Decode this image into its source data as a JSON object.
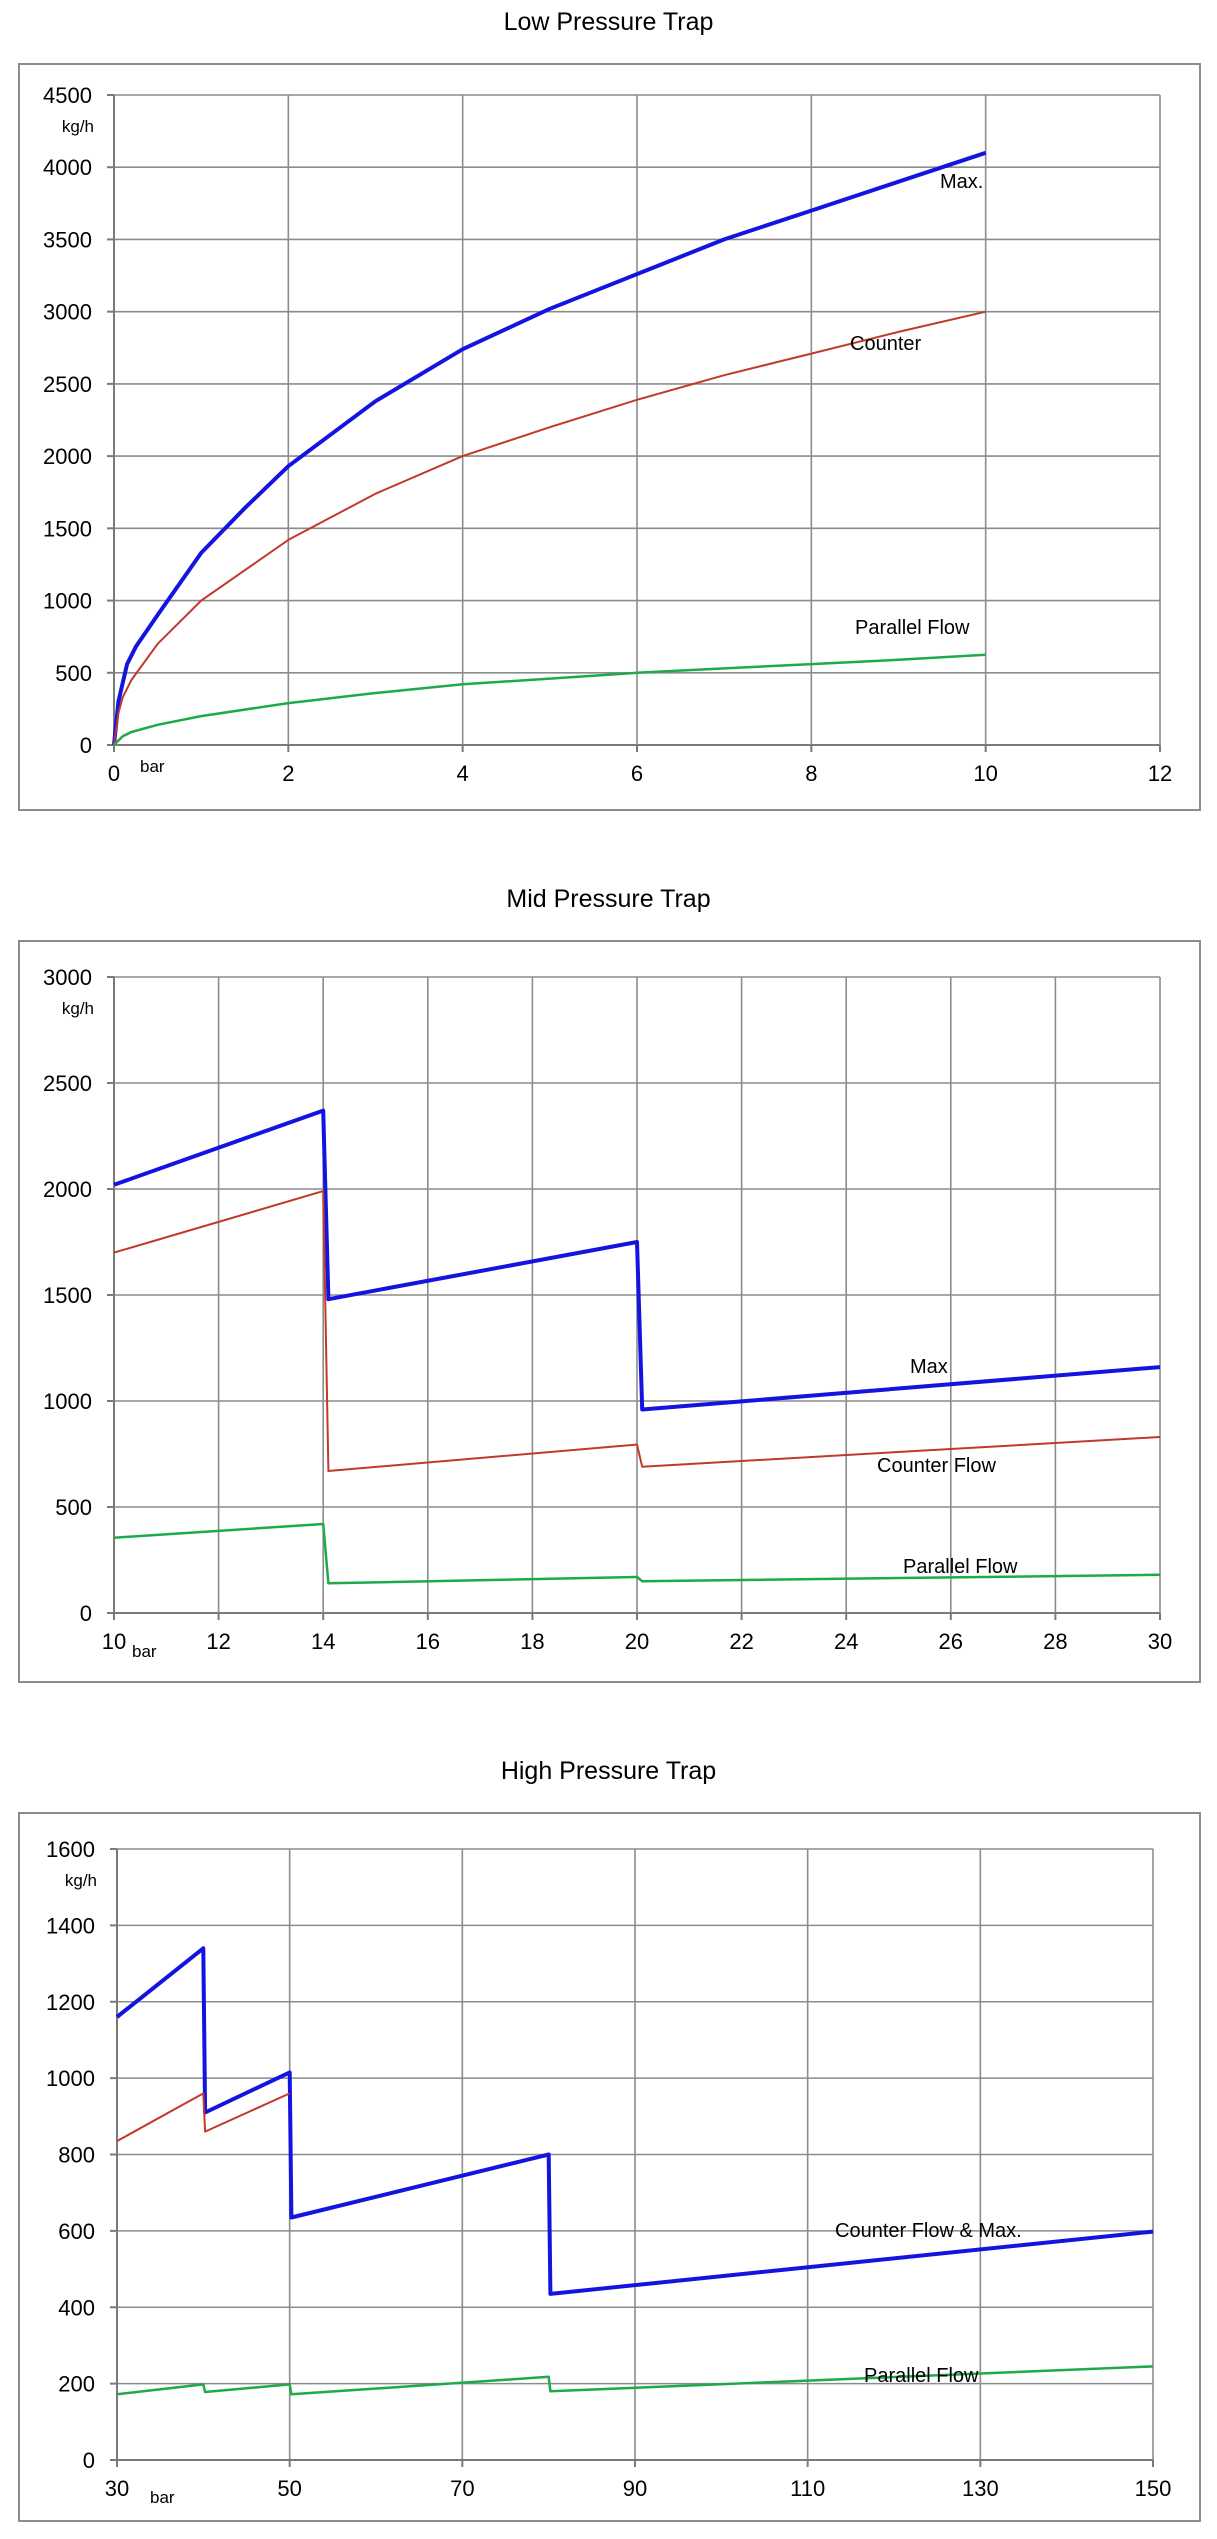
{
  "chart_data": [
    {
      "type": "line",
      "title": "Low Pressure Trap",
      "ylabel": "kg/h",
      "xlabel": "bar",
      "xlim": [
        0,
        12
      ],
      "ylim": [
        0,
        4500
      ],
      "xticks": [
        0,
        2,
        4,
        6,
        8,
        10,
        12
      ],
      "yticks": [
        0,
        500,
        1000,
        1500,
        2000,
        2500,
        3000,
        3500,
        4000,
        4500
      ],
      "grid": true,
      "series": [
        {
          "name": "Max.",
          "color": "#1414e0",
          "width": 4,
          "x": [
            0,
            0.05,
            0.1,
            0.15,
            0.25,
            0.5,
            1,
            1.5,
            2,
            3,
            4,
            5,
            6,
            7,
            8,
            9,
            10
          ],
          "y": [
            0,
            300,
            430,
            560,
            680,
            900,
            1330,
            1640,
            1930,
            2380,
            2740,
            3020,
            3260,
            3500,
            3700,
            3900,
            4100
          ]
        },
        {
          "name": "Counter",
          "color": "#c0392b",
          "width": 2,
          "x": [
            0,
            0.05,
            0.1,
            0.2,
            0.5,
            1,
            2,
            3,
            4,
            5,
            6,
            7,
            8,
            9,
            10
          ],
          "y": [
            0,
            220,
            330,
            450,
            700,
            1000,
            1420,
            1740,
            2000,
            2200,
            2390,
            2560,
            2710,
            2860,
            3000
          ]
        },
        {
          "name": "Parallel Flow",
          "color": "#1faa4a",
          "width": 2.5,
          "x": [
            0,
            0.1,
            0.2,
            0.5,
            1,
            2,
            3,
            4,
            5,
            6,
            7,
            8,
            9,
            10
          ],
          "y": [
            0,
            60,
            90,
            140,
            200,
            290,
            360,
            420,
            460,
            500,
            530,
            560,
            590,
            625
          ]
        }
      ],
      "annotations": [
        "Max.",
        "Counter",
        "Parallel Flow"
      ]
    },
    {
      "type": "line",
      "title": "Mid Pressure Trap",
      "ylabel": "kg/h",
      "xlabel": "bar",
      "xlim": [
        10,
        30
      ],
      "ylim": [
        0,
        3000
      ],
      "xticks": [
        10,
        12,
        14,
        16,
        18,
        20,
        22,
        24,
        26,
        28,
        30
      ],
      "yticks": [
        0,
        500,
        1000,
        1500,
        2000,
        2500,
        3000
      ],
      "grid": true,
      "series": [
        {
          "name": "Max",
          "color": "#1414e0",
          "width": 4,
          "x": [
            10,
            14,
            14.1,
            20,
            20.1,
            30
          ],
          "y": [
            2020,
            2370,
            1480,
            1750,
            960,
            1160
          ]
        },
        {
          "name": "Counter Flow",
          "color": "#c0392b",
          "width": 2,
          "x": [
            10,
            14,
            14.1,
            20,
            20.1,
            30
          ],
          "y": [
            1700,
            1990,
            670,
            795,
            690,
            830
          ]
        },
        {
          "name": "Parallel Flow",
          "color": "#1faa4a",
          "width": 2.5,
          "x": [
            10,
            14,
            14.1,
            20,
            20.1,
            30
          ],
          "y": [
            355,
            420,
            140,
            170,
            150,
            180
          ]
        }
      ],
      "annotations": [
        "Max",
        "Counter Flow",
        "Parallel Flow"
      ]
    },
    {
      "type": "line",
      "title": "High Pressure Trap",
      "ylabel": "kg/h",
      "xlabel": "bar",
      "xlim": [
        30,
        150
      ],
      "ylim": [
        0,
        1600
      ],
      "xticks": [
        30,
        50,
        70,
        90,
        110,
        130,
        150
      ],
      "yticks": [
        0,
        200,
        400,
        600,
        800,
        1000,
        1200,
        1400,
        1600
      ],
      "grid": true,
      "series": [
        {
          "name": "Counter Flow & Max.",
          "color": "#1414e0",
          "width": 4,
          "x": [
            30,
            40,
            40.2,
            50,
            50.2,
            80,
            80.2,
            150
          ],
          "y": [
            1160,
            1340,
            910,
            1015,
            635,
            800,
            435,
            598
          ]
        },
        {
          "name": "Counter Flow",
          "color": "#c0392b",
          "width": 2,
          "x": [
            30,
            40,
            40.2,
            50
          ],
          "y": [
            835,
            960,
            860,
            960
          ]
        },
        {
          "name": "Parallel Flow",
          "color": "#1faa4a",
          "width": 2.5,
          "x": [
            30,
            40,
            40.2,
            50,
            50.2,
            80,
            80.2,
            150
          ],
          "y": [
            172,
            198,
            178,
            198,
            172,
            218,
            180,
            245
          ]
        }
      ],
      "annotations": [
        "Counter Flow & Max.",
        "Parallel Flow"
      ]
    }
  ]
}
